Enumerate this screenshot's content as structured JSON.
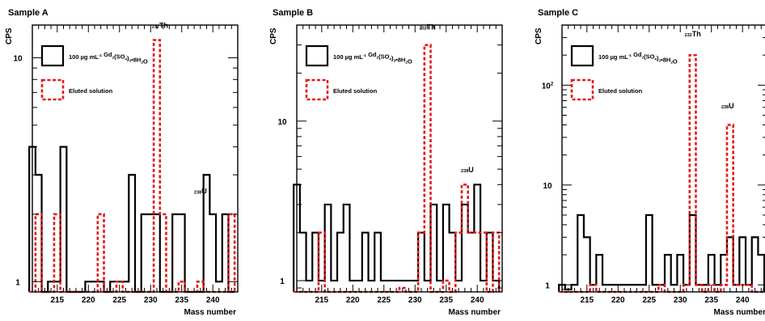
{
  "chart_data": [
    {
      "type": "histogram",
      "title": "Sample A",
      "xlabel": "Mass number",
      "ylabel": "CPS",
      "xlim": [
        211,
        244
      ],
      "ylim": [
        0.9,
        14
      ],
      "yscale": "log",
      "xticks": [
        215,
        220,
        225,
        230,
        235,
        240
      ],
      "yticks": [
        {
          "value": 1,
          "label": "1"
        },
        {
          "value": 10,
          "label": "10"
        }
      ],
      "legend_position": "top-left",
      "x": [
        211,
        212,
        213,
        214,
        215,
        216,
        217,
        218,
        219,
        220,
        221,
        222,
        223,
        224,
        225,
        226,
        227,
        228,
        229,
        230,
        231,
        232,
        233,
        234,
        235,
        236,
        237,
        238,
        239,
        240,
        241,
        242,
        243
      ],
      "series": [
        {
          "name": "100 µg mL⁻¹ Gd₂(SO₄)₃•8H₂O",
          "color": "#000000",
          "style": "solid",
          "values": [
            4,
            3,
            0.9,
            1,
            1,
            4,
            0.9,
            0.9,
            0.9,
            1,
            1,
            1,
            0.9,
            1,
            1,
            1,
            3,
            0.9,
            2,
            2,
            2,
            0.9,
            0.9,
            2,
            2,
            0.9,
            0.9,
            0.9,
            3,
            2,
            1,
            2,
            0.9
          ]
        },
        {
          "name": "Eluted solution",
          "color": "#e41a1c",
          "style": "dashed",
          "values": [
            0.9,
            2,
            0.9,
            0.9,
            2,
            0.9,
            0.9,
            0.9,
            0.9,
            0.9,
            0.9,
            2,
            0.9,
            0.9,
            1,
            0.9,
            0.9,
            0.9,
            0.9,
            0.9,
            12,
            2,
            0.9,
            0.9,
            1,
            0.9,
            0.9,
            1,
            0.9,
            0.9,
            0.9,
            0.9,
            2
          ]
        }
      ],
      "annotations": [
        {
          "text": "²³²Th",
          "x": 231.5,
          "y": 13.2
        },
        {
          "text": "²³⁸U",
          "x": 238,
          "y": 2.4
        }
      ]
    },
    {
      "type": "histogram",
      "title": "Sample B",
      "xlabel": "Mass number",
      "ylabel": "CPS",
      "xlim": [
        211,
        244
      ],
      "ylim": [
        0.85,
        40
      ],
      "yscale": "log",
      "xticks": [
        215,
        220,
        225,
        230,
        235,
        240
      ],
      "yticks": [
        {
          "value": 1,
          "label": "1"
        },
        {
          "value": 10,
          "label": "10"
        }
      ],
      "legend_position": "top-left",
      "x": [
        211,
        212,
        213,
        214,
        215,
        216,
        217,
        218,
        219,
        220,
        221,
        222,
        223,
        224,
        225,
        226,
        227,
        228,
        229,
        230,
        231,
        232,
        233,
        234,
        235,
        236,
        237,
        238,
        239,
        240,
        241,
        242,
        243
      ],
      "series": [
        {
          "name": "100 µg mL⁻¹ Gd₂(SO₄)₃•8H₂O",
          "color": "#000000",
          "style": "solid",
          "values": [
            4,
            2,
            1,
            2,
            1,
            3,
            1,
            2,
            3,
            1,
            1,
            2,
            1,
            2,
            1,
            1,
            1,
            1,
            1,
            1,
            2,
            1,
            3,
            1,
            3,
            2,
            1,
            3,
            2,
            4,
            1,
            2,
            1
          ]
        },
        {
          "name": "Eluted solution",
          "color": "#e41a1c",
          "style": "dashed",
          "values": [
            0.85,
            0.85,
            0.85,
            0.85,
            2,
            0.85,
            0.85,
            0.85,
            0.85,
            0.85,
            0.85,
            0.85,
            0.85,
            0.85,
            0.85,
            0.85,
            0.85,
            0.9,
            0.85,
            0.85,
            2,
            30,
            0.85,
            0.85,
            1,
            0.85,
            2,
            4,
            2,
            2,
            2,
            0.85,
            2
          ]
        }
      ],
      "annotations": [
        {
          "text": "²³²Th",
          "x": 232,
          "y": 36
        },
        {
          "text": "²³⁸U",
          "x": 238.4,
          "y": 4.6
        }
      ]
    },
    {
      "type": "histogram",
      "title": "Sample C",
      "xlabel": "Mass number",
      "ylabel": "CPS",
      "xlim": [
        211,
        244
      ],
      "ylim": [
        0.85,
        400
      ],
      "yscale": "log",
      "xticks": [
        215,
        220,
        225,
        230,
        235,
        240
      ],
      "yticks": [
        {
          "value": 1,
          "label": "1"
        },
        {
          "value": 10,
          "label": "10"
        },
        {
          "value": 100,
          "label": "10²"
        }
      ],
      "legend_position": "top-left",
      "x": [
        211,
        212,
        213,
        214,
        215,
        216,
        217,
        218,
        219,
        220,
        221,
        222,
        223,
        224,
        225,
        226,
        227,
        228,
        229,
        230,
        231,
        232,
        233,
        234,
        235,
        236,
        237,
        238,
        239,
        240,
        241,
        242,
        243
      ],
      "series": [
        {
          "name": "100 µg mL⁻¹ Gd₂(SO₄)₃•8H₂O",
          "color": "#000000",
          "style": "solid",
          "values": [
            1,
            0.9,
            1,
            5,
            3,
            1,
            2,
            1,
            1,
            1,
            1,
            1,
            1,
            1,
            5,
            1,
            1,
            2,
            1,
            2,
            1,
            5,
            1,
            1,
            2,
            1,
            2,
            3,
            1,
            3,
            1,
            3,
            2
          ]
        },
        {
          "name": "Eluted solution",
          "color": "#e41a1c",
          "style": "dashed",
          "values": [
            0.85,
            0.85,
            0.85,
            0.85,
            0.85,
            1,
            0.85,
            0.85,
            0.85,
            0.85,
            0.85,
            0.85,
            0.85,
            0.85,
            0.85,
            0.85,
            1,
            0.85,
            0.85,
            0.85,
            1,
            200,
            1,
            0.85,
            1,
            0.85,
            1,
            40,
            1,
            1,
            1,
            0.85,
            0.85
          ]
        }
      ],
      "annotations": [
        {
          "text": "²³²Th",
          "x": 232,
          "y": 290
        },
        {
          "text": "²³⁸U",
          "x": 237.6,
          "y": 55
        }
      ]
    }
  ]
}
